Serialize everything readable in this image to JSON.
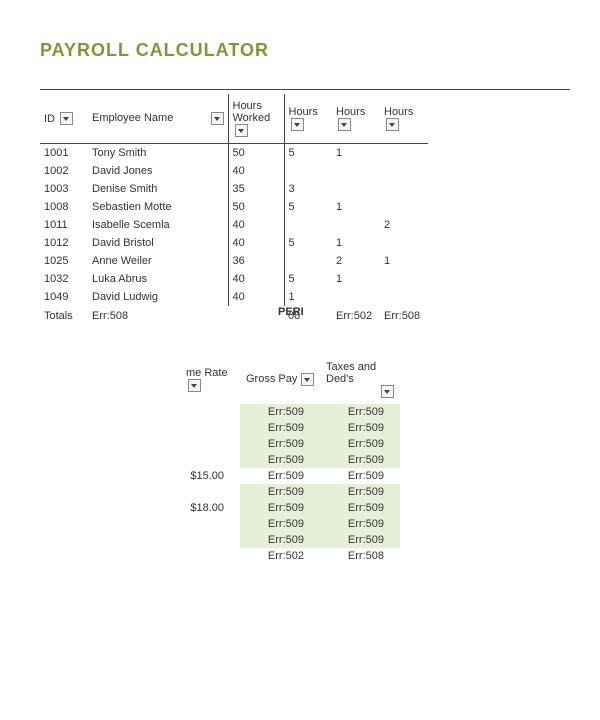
{
  "title": "PAYROLL CALCULATOR",
  "colors": {
    "accent": "#7a9a3a",
    "shade": "#e7efd8",
    "border": "#444444"
  },
  "mainTable": {
    "headers": {
      "id": "ID",
      "name": "Employee Name",
      "hoursWorked": "Hours Worked",
      "h1": "Hours",
      "h2": "Hours",
      "h3": "Hours"
    },
    "rows": [
      {
        "id": "1001",
        "name": "Tony Smith",
        "hw": "50",
        "h1": "5",
        "h2": "1",
        "h3": ""
      },
      {
        "id": "1002",
        "name": "David Jones",
        "hw": "40",
        "h1": "",
        "h2": "",
        "h3": ""
      },
      {
        "id": "1003",
        "name": "Denise Smith",
        "hw": "35",
        "h1": "3",
        "h2": "",
        "h3": ""
      },
      {
        "id": "1008",
        "name": "Sebastien Motte",
        "hw": "50",
        "h1": "5",
        "h2": "1",
        "h3": ""
      },
      {
        "id": "1011",
        "name": "Isabelle Scemla",
        "hw": "40",
        "h1": "",
        "h2": "",
        "h3": "2"
      },
      {
        "id": "1012",
        "name": "David Bristol",
        "hw": "40",
        "h1": "5",
        "h2": "1",
        "h3": ""
      },
      {
        "id": "1025",
        "name": "Anne Weiler",
        "hw": "36",
        "h1": "",
        "h2": "2",
        "h3": "1"
      },
      {
        "id": "1032",
        "name": "Luka Abrus",
        "hw": "40",
        "h1": "5",
        "h2": "1",
        "h3": ""
      },
      {
        "id": "1049",
        "name": "David Ludwig",
        "hw": "40",
        "h1": "1",
        "h2": "",
        "h3": ""
      }
    ],
    "totals": {
      "label": "Totals",
      "name": "Err:508",
      "h1Overlay": "PERI",
      "h1Suffix": "08",
      "h2": "Err:502",
      "h3": "Err:508"
    }
  },
  "lowerTable": {
    "headers": {
      "rate": "me Rate",
      "gross": "Gross Pay",
      "taxes": "Taxes and Ded's"
    },
    "rows": [
      {
        "rate": "",
        "gross": "Err:509",
        "taxes": "Err:509",
        "shade": true
      },
      {
        "rate": "",
        "gross": "Err:509",
        "taxes": "Err:509",
        "shade": true
      },
      {
        "rate": "",
        "gross": "Err:509",
        "taxes": "Err:509",
        "shade": true
      },
      {
        "rate": "",
        "gross": "Err:509",
        "taxes": "Err:509",
        "shade": true
      },
      {
        "rate": "$15.00",
        "gross": "Err:509",
        "taxes": "Err:509",
        "shade": false
      },
      {
        "rate": "",
        "gross": "Err:509",
        "taxes": "Err:509",
        "shade": true
      },
      {
        "rate": "$18.00",
        "gross": "Err:509",
        "taxes": "Err:509",
        "shade": true
      },
      {
        "rate": "",
        "gross": "Err:509",
        "taxes": "Err:509",
        "shade": true
      },
      {
        "rate": "",
        "gross": "Err:509",
        "taxes": "Err:509",
        "shade": true
      },
      {
        "rate": "",
        "gross": "Err:502",
        "taxes": "Err:508",
        "shade": false
      }
    ]
  }
}
